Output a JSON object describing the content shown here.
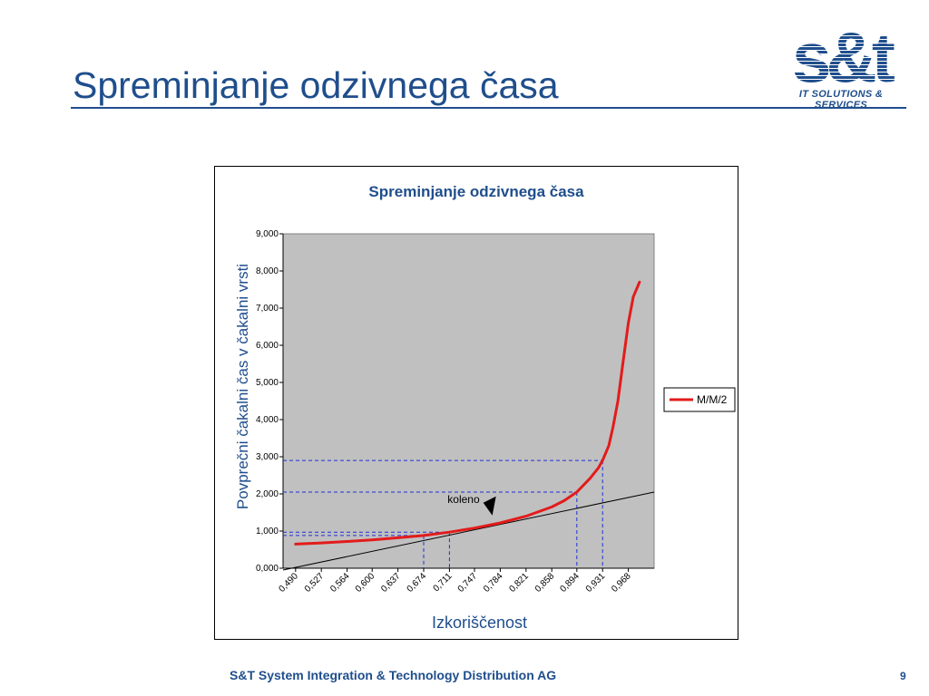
{
  "slide": {
    "title": "Spreminjanje odzivnega časa",
    "footer": "S&T System Integration & Technology Distribution AG",
    "page_number": "9"
  },
  "logo": {
    "text": "s&t",
    "tagline": "IT SOLUTIONS & SERVICES",
    "color": "#1f4e8c"
  },
  "chart_data": {
    "type": "line",
    "title": "Spreminjanje odzivnega časa",
    "xlabel": "Izkoriščenost",
    "ylabel": "Povprečni čakalni čas v čakalni vrsti",
    "x_ticks": [
      "0,490",
      "0,527",
      "0,564",
      "0,600",
      "0,637",
      "0,674",
      "0,711",
      "0,747",
      "0,784",
      "0,821",
      "0,858",
      "0,894",
      "0,931",
      "0,968"
    ],
    "y_ticks": [
      "0,000",
      "1,000",
      "2,000",
      "3,000",
      "4,000",
      "5,000",
      "6,000",
      "7,000",
      "8,000",
      "9,000"
    ],
    "xlim": [
      0.472,
      1.005
    ],
    "ylim": [
      0,
      9
    ],
    "series": [
      {
        "name": "M/M/2",
        "color": "#e31b1b",
        "x": [
          0.49,
          0.527,
          0.564,
          0.6,
          0.637,
          0.674,
          0.711,
          0.747,
          0.784,
          0.821,
          0.858,
          0.876,
          0.894,
          0.913,
          0.925,
          0.931,
          0.94,
          0.946,
          0.953,
          0.96,
          0.968,
          0.975,
          0.984
        ],
        "y": [
          0.65,
          0.68,
          0.72,
          0.76,
          0.82,
          0.88,
          0.97,
          1.08,
          1.22,
          1.4,
          1.65,
          1.82,
          2.05,
          2.42,
          2.7,
          2.9,
          3.3,
          3.8,
          4.5,
          5.5,
          6.6,
          7.3,
          7.7
        ]
      }
    ],
    "trend_line": {
      "x": [
        0.472,
        1.005
      ],
      "y": [
        -0.05,
        2.05
      ],
      "color": "#000000"
    },
    "guides": [
      {
        "x": 0.674,
        "y": 0.88
      },
      {
        "x": 0.711,
        "y": 0.97
      },
      {
        "x": 0.894,
        "y": 2.05
      },
      {
        "x": 0.931,
        "y": 2.9
      }
    ],
    "guide_color": "#1f2fd6",
    "annotation": {
      "text": "koleno",
      "x": 0.77,
      "y": 1.25
    },
    "legend_position": "right",
    "plot_background": "#c0c0c0",
    "grid": false
  }
}
